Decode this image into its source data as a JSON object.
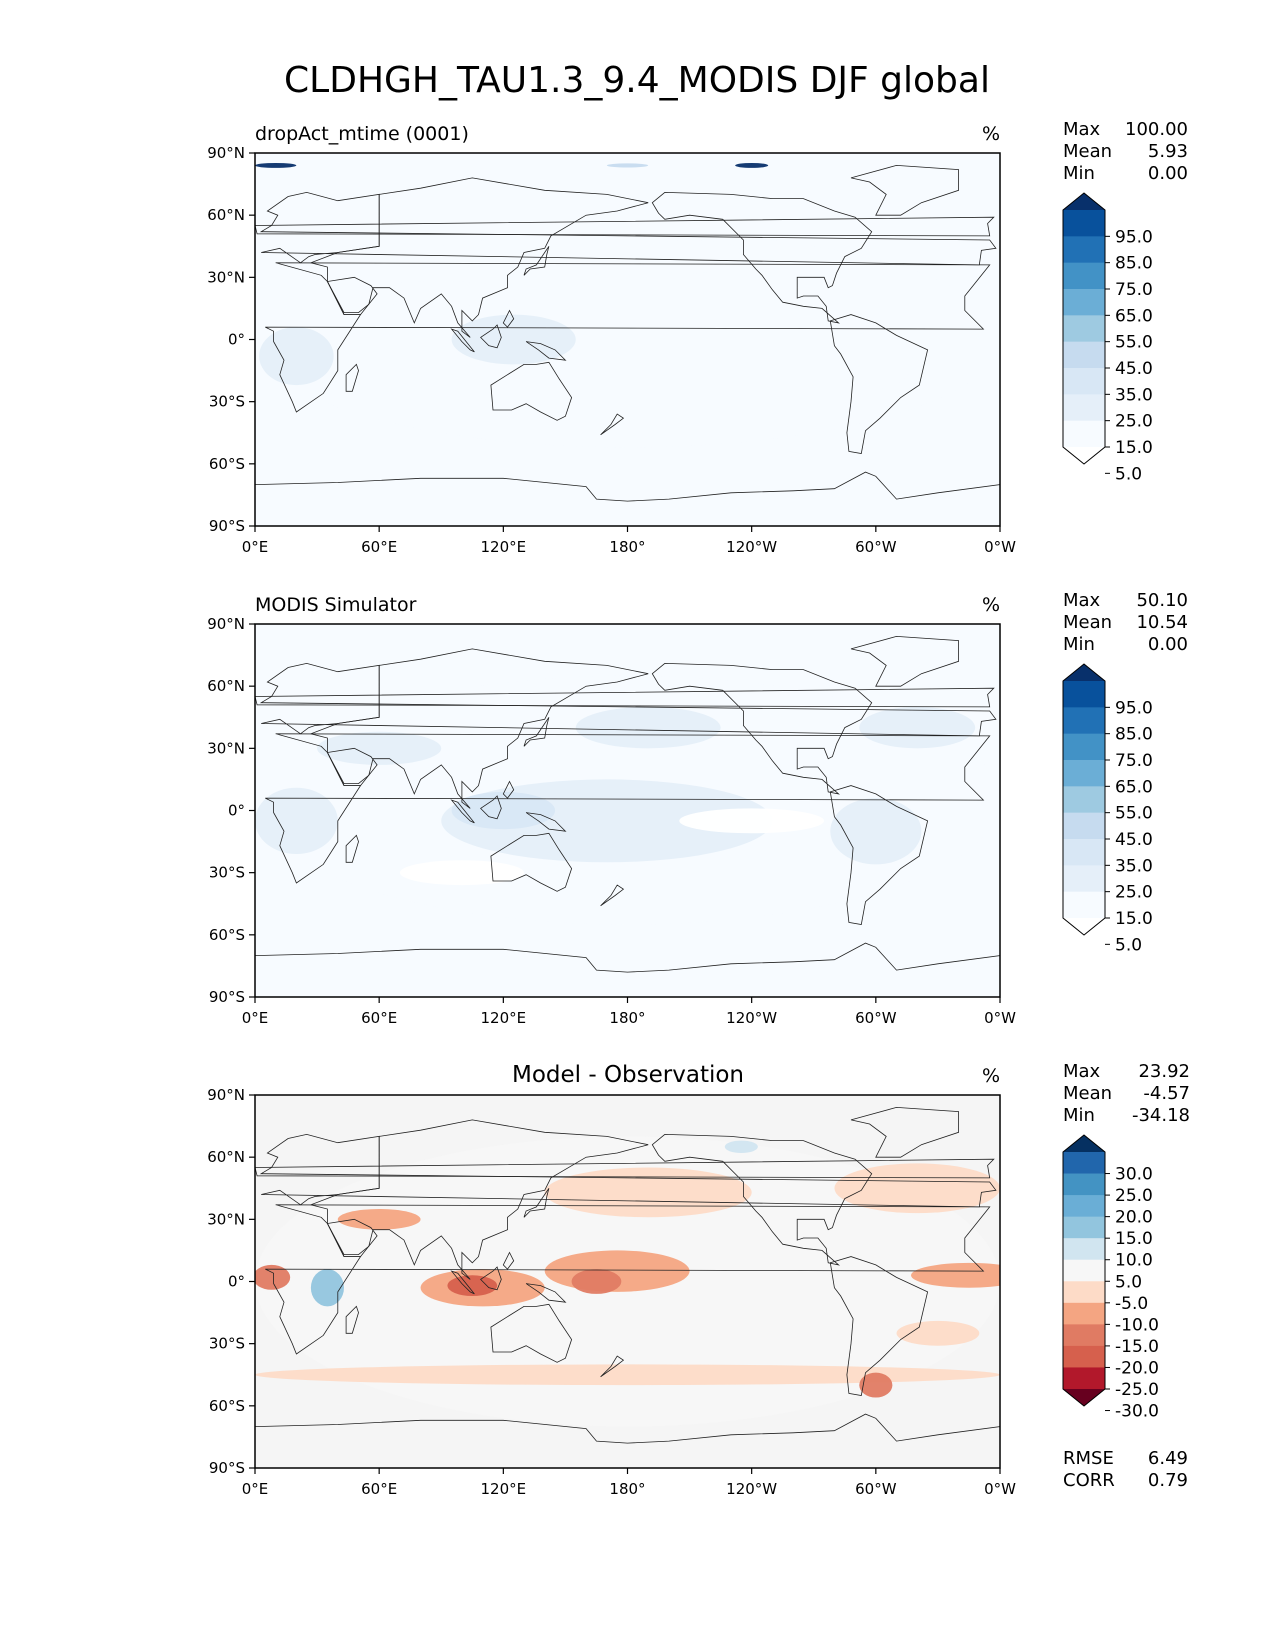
{
  "title": "CLDHGH_TAU1.3_9.4_MODIS DJF global",
  "chart_data": [
    {
      "type": "heatmap",
      "subtitle": "dropAct_mtime (0001)",
      "units": "%",
      "stats": [
        {
          "label": "Max",
          "value": "100.00"
        },
        {
          "label": "Mean",
          "value": "5.93"
        },
        {
          "label": "Min",
          "value": "0.00"
        }
      ],
      "levels": [
        "95.0",
        "85.0",
        "75.0",
        "65.0",
        "55.0",
        "45.0",
        "35.0",
        "25.0",
        "15.0",
        "5.0"
      ],
      "colors": [
        "#08306b",
        "#08519c",
        "#2171b5",
        "#4292c6",
        "#6baed6",
        "#9ecae1",
        "#c6dbef",
        "#d8e7f5",
        "#e5eff9",
        "#f7fbff",
        "#ffffff"
      ],
      "x_ticks": [
        "0°E",
        "60°E",
        "120°E",
        "180°",
        "120°W",
        "60°W",
        "0°W"
      ],
      "y_ticks": [
        "90°N",
        "60°N",
        "30°N",
        "0°",
        "30°S",
        "60°S",
        "90°S"
      ],
      "x_range": [
        0,
        360
      ],
      "y_range": [
        -90,
        90
      ]
    },
    {
      "type": "heatmap",
      "subtitle": "MODIS Simulator",
      "units": "%",
      "stats": [
        {
          "label": "Max",
          "value": "50.10"
        },
        {
          "label": "Mean",
          "value": "10.54"
        },
        {
          "label": "Min",
          "value": "0.00"
        }
      ],
      "levels": [
        "95.0",
        "85.0",
        "75.0",
        "65.0",
        "55.0",
        "45.0",
        "35.0",
        "25.0",
        "15.0",
        "5.0"
      ],
      "colors": [
        "#08306b",
        "#08519c",
        "#2171b5",
        "#4292c6",
        "#6baed6",
        "#9ecae1",
        "#c6dbef",
        "#d8e7f5",
        "#e5eff9",
        "#f7fbff",
        "#ffffff"
      ],
      "x_ticks": [
        "0°E",
        "60°E",
        "120°E",
        "180°",
        "120°W",
        "60°W",
        "0°W"
      ],
      "y_ticks": [
        "90°N",
        "60°N",
        "30°N",
        "0°",
        "30°S",
        "60°S",
        "90°S"
      ],
      "x_range": [
        0,
        360
      ],
      "y_range": [
        -90,
        90
      ]
    },
    {
      "type": "heatmap",
      "subtitle": "Model - Observation",
      "units": "%",
      "stats": [
        {
          "label": "Max",
          "value": "23.92"
        },
        {
          "label": "Mean",
          "value": "-4.57"
        },
        {
          "label": "Min",
          "value": "-34.18"
        }
      ],
      "levels": [
        "30.0",
        "25.0",
        "20.0",
        "15.0",
        "10.0",
        "5.0",
        "-5.0",
        "-10.0",
        "-15.0",
        "-20.0",
        "-25.0",
        "-30.0"
      ],
      "colors": [
        "#053061",
        "#2166ac",
        "#4393c3",
        "#6aaed6",
        "#92c5de",
        "#d1e5f0",
        "#f7f7f7",
        "#fddbc7",
        "#f4a582",
        "#e07b63",
        "#d6604d",
        "#b2182b",
        "#67001f"
      ],
      "x_ticks": [
        "0°E",
        "60°E",
        "120°E",
        "180°",
        "120°W",
        "60°W",
        "0°W"
      ],
      "y_ticks": [
        "90°N",
        "60°N",
        "30°N",
        "0°",
        "30°S",
        "60°S",
        "90°S"
      ],
      "x_range": [
        0,
        360
      ],
      "y_range": [
        -90,
        90
      ],
      "metrics": [
        {
          "label": "RMSE",
          "value": "6.49"
        },
        {
          "label": "CORR",
          "value": "0.79"
        }
      ]
    }
  ]
}
